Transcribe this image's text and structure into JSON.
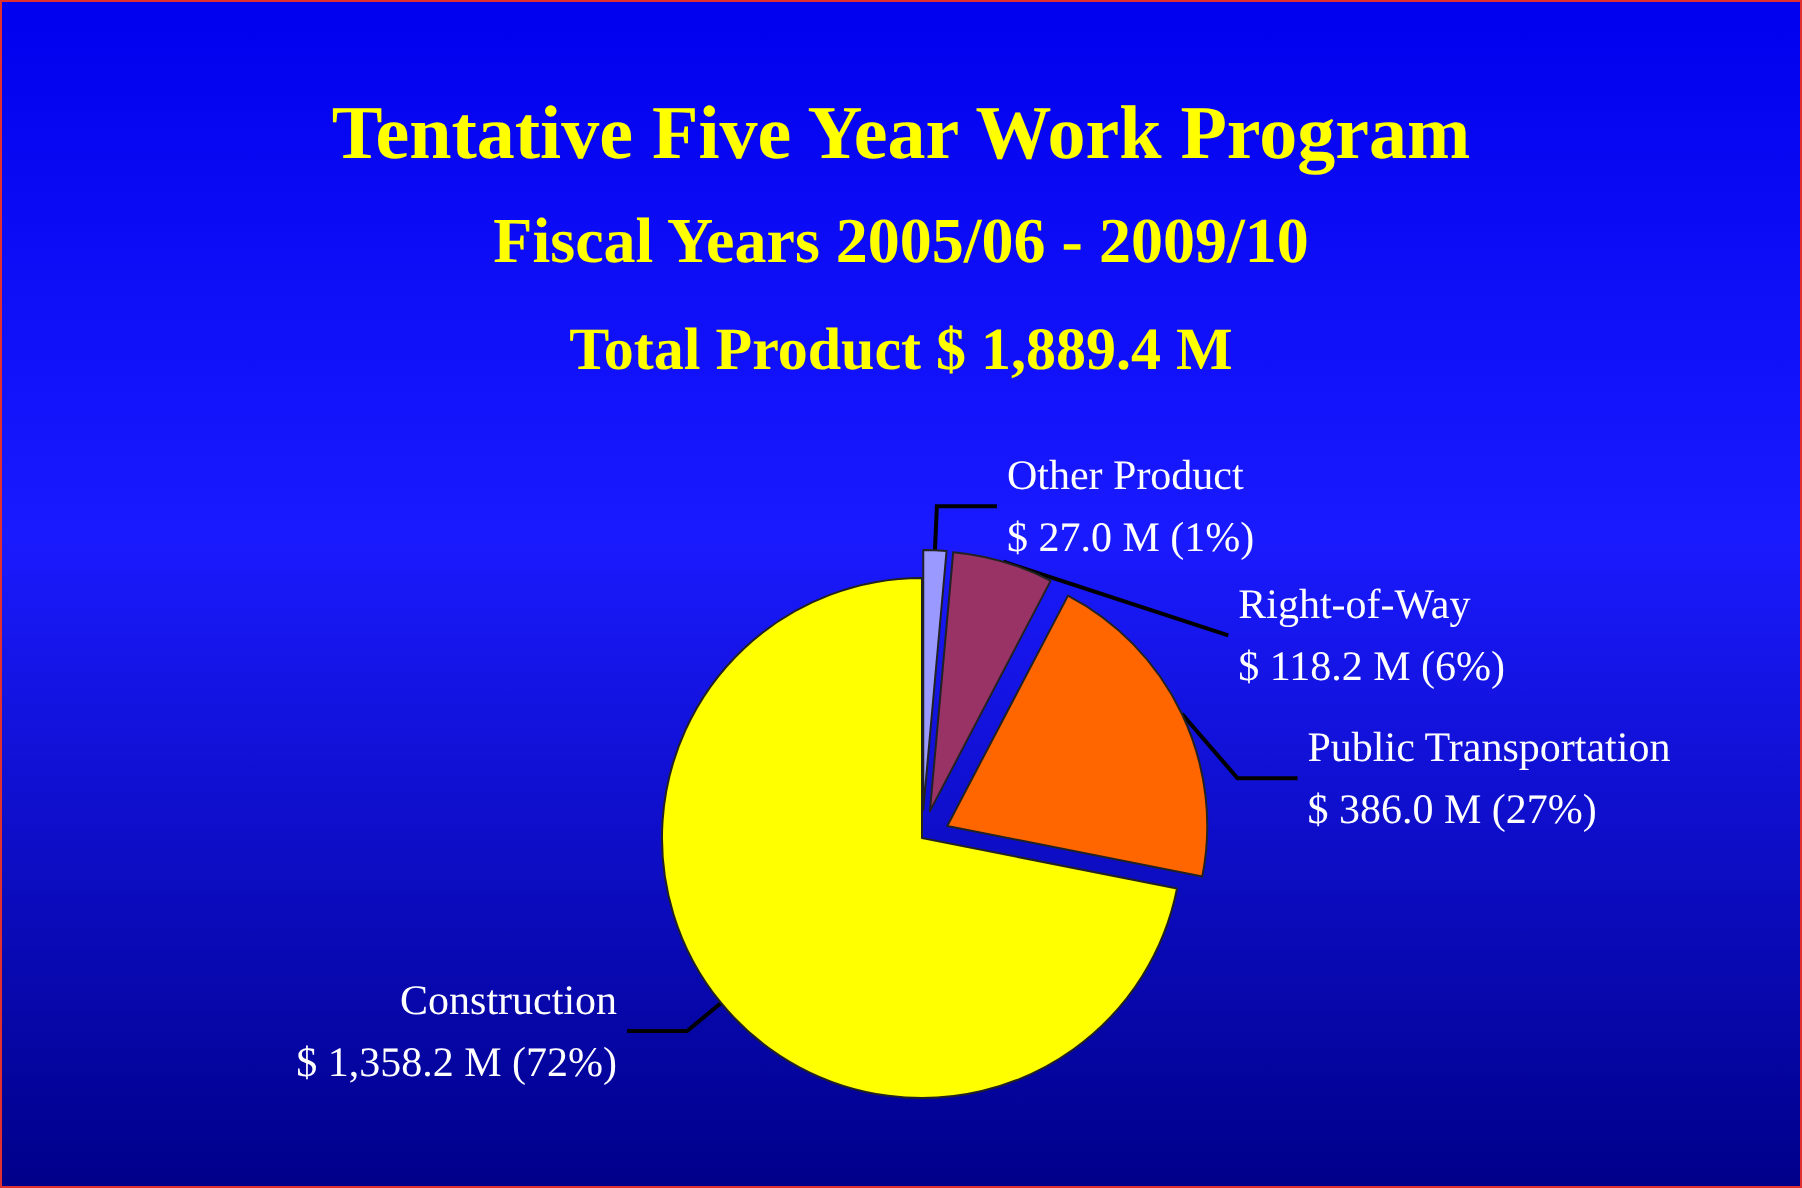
{
  "chart_data": {
    "type": "pie",
    "title": "Tentative Five Year Work Program",
    "subtitle": "Fiscal Years 2005/06 - 2009/10",
    "annotations": [
      "Total Product $ 1,889.4 M"
    ],
    "categories": [
      "Other Product",
      "Right-of-Way",
      "Public Transportation",
      "Construction"
    ],
    "values": [
      27.0,
      118.2,
      386.0,
      1358.2
    ],
    "colors": [
      "#9999ff",
      "#993366",
      "#ff6600",
      "#ffff00"
    ],
    "value_labels": [
      "$ 27.0 M (1%)",
      "$ 118.2 M (6%)",
      "$ 386.0 M (27%)",
      "$ 1,358.2 M (72%)"
    ]
  }
}
